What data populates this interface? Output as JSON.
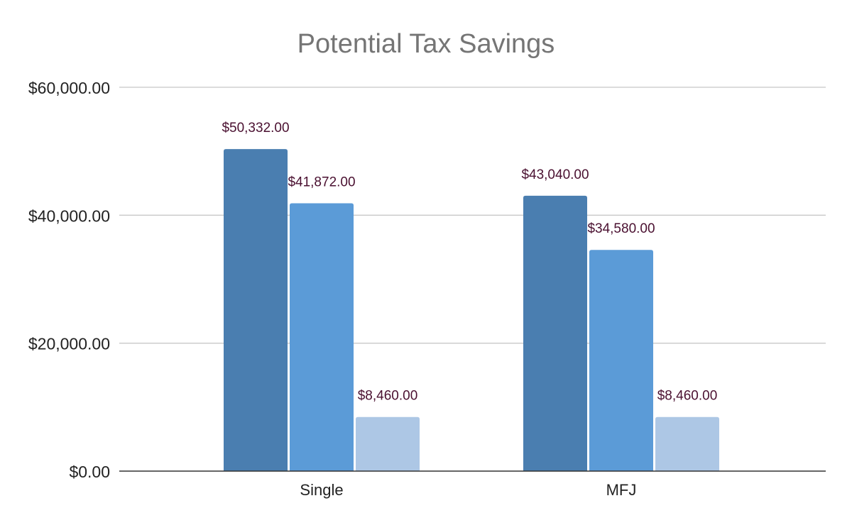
{
  "chart_data": {
    "type": "bar",
    "title": "Potential Tax Savings",
    "xlabel": "",
    "ylabel": "",
    "categories": [
      "Single",
      "MFJ"
    ],
    "series": [
      {
        "values": [
          50332,
          43040
        ],
        "labels": [
          "$50,332.00",
          "$43,040.00"
        ],
        "color": "#4a7eb0"
      },
      {
        "values": [
          41872,
          34580
        ],
        "labels": [
          "$41,872.00",
          "$34,580.00"
        ],
        "color": "#5b9bd7"
      },
      {
        "values": [
          8460,
          8460
        ],
        "labels": [
          "$8,460.00",
          "$8,460.00"
        ],
        "color": "#adc7e5"
      }
    ],
    "ylim": [
      0,
      60000
    ],
    "yticks": [
      0,
      20000,
      40000,
      60000
    ],
    "ytick_labels": [
      "$0.00",
      "$20,000.00",
      "$40,000.00",
      "$60,000.00"
    ],
    "grid": true,
    "legend": "none",
    "colors": {
      "title": "#757575",
      "data_label": "#4a1030",
      "gridline": "#c8c8c8",
      "axis": "#333333",
      "tick_label": "#222222"
    }
  }
}
